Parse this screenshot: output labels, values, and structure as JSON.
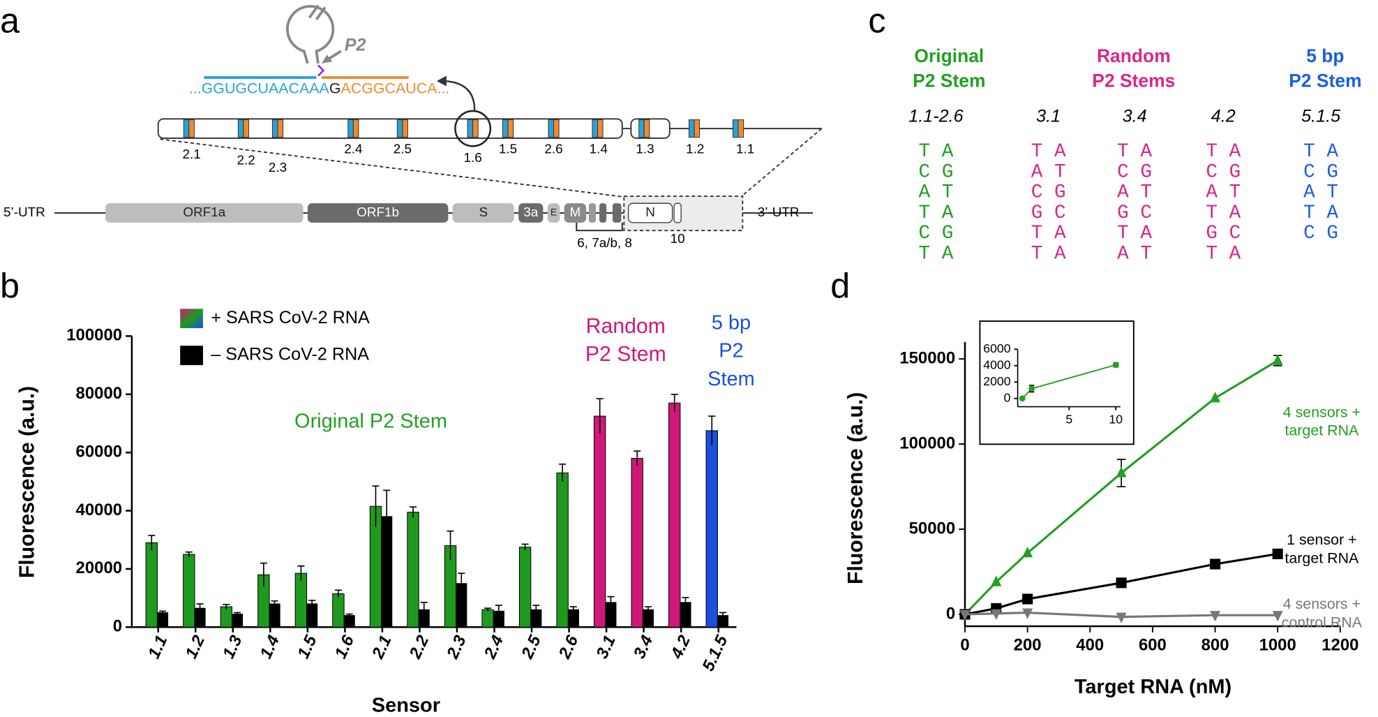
{
  "panel_a": {
    "label": "a",
    "p2_label": "P2",
    "sequence": {
      "left": "...GGUGCUAACAAA",
      "junction": "G",
      "right": "ACGGCAUCA..."
    },
    "sensor_sites": [
      "2.1",
      "2.2",
      "2.3",
      "2.4",
      "2.5",
      "1.6",
      "1.5",
      "2.6",
      "1.4",
      "1.3",
      "1.2",
      "1.1"
    ],
    "genome": {
      "utr5": "5’-UTR",
      "utr3": "3’-UTR",
      "genes": [
        "ORF1a",
        "ORF1b",
        "S",
        "3a",
        "E",
        "M",
        "N"
      ],
      "accessory": "6, 7a/b, 8",
      "orf10": "10"
    }
  },
  "panel_c": {
    "label": "c",
    "groups": [
      {
        "title_lines": [
          "Original",
          "P2 Stem"
        ],
        "color": "#22a022",
        "columns": [
          {
            "name": "1.1-2.6",
            "pairs": [
              "T A",
              "C G",
              "A T",
              "T A",
              "C G",
              "T A"
            ]
          }
        ]
      },
      {
        "title_lines": [
          "Random",
          "P2 Stems"
        ],
        "color": "#d6288a",
        "columns": [
          {
            "name": "3.1",
            "pairs": [
              "T A",
              "A T",
              "C G",
              "G C",
              "T A",
              "T A"
            ]
          },
          {
            "name": "3.4",
            "pairs": [
              "T A",
              "C G",
              "A T",
              "G C",
              "T A",
              "A T"
            ]
          },
          {
            "name": "4.2",
            "pairs": [
              "T A",
              "C G",
              "A T",
              "T A",
              "G C",
              "T A"
            ]
          }
        ]
      },
      {
        "title_lines": [
          "5 bp",
          "P2 Stem"
        ],
        "color": "#1a5fe0",
        "columns": [
          {
            "name": "5.1.5",
            "pairs": [
              "T A",
              "C G",
              "A T",
              "T A",
              "C G"
            ]
          }
        ]
      }
    ]
  },
  "chart_data": [
    {
      "type": "bar",
      "panel_label": "b",
      "y_label": "Fluorescence (a.u.)",
      "x_label": "Sensor",
      "categories": [
        "1.1",
        "1.2",
        "1.3",
        "1.4",
        "1.5",
        "1.6",
        "2.1",
        "2.2",
        "2.3",
        "2.4",
        "2.5",
        "2.6",
        "3.1",
        "3.4",
        "4.2",
        "5.1.5"
      ],
      "series": [
        {
          "name": "+ SARS CoV-2 RNA",
          "colors": [
            "#1f9a1f",
            "#1f9a1f",
            "#1f9a1f",
            "#1f9a1f",
            "#1f9a1f",
            "#1f9a1f",
            "#1f9a1f",
            "#1f9a1f",
            "#1f9a1f",
            "#1f9a1f",
            "#1f9a1f",
            "#1f9a1f",
            "#d0187a",
            "#d0187a",
            "#d0187a",
            "#1a4fe0"
          ],
          "values": [
            29000,
            25000,
            7000,
            18000,
            18500,
            11500,
            41500,
            39500,
            28000,
            6000,
            27500,
            53000,
            72500,
            58000,
            77000,
            67500
          ],
          "errors": [
            2500,
            800,
            800,
            4000,
            2500,
            1200,
            7000,
            1800,
            5000,
            500,
            1000,
            3000,
            6000,
            2500,
            3000,
            5000
          ]
        },
        {
          "name": "– SARS CoV-2 RNA",
          "color": "#000000",
          "values": [
            5000,
            6500,
            4500,
            8000,
            8000,
            4000,
            38000,
            6000,
            15000,
            5500,
            6000,
            6000,
            8500,
            6000,
            8500,
            4000
          ],
          "errors": [
            500,
            1500,
            500,
            1000,
            1200,
            500,
            9000,
            2500,
            3500,
            2000,
            1500,
            1000,
            2000,
            1000,
            1700,
            1000
          ]
        }
      ],
      "ylim": [
        0,
        100000
      ],
      "yticks": [
        0,
        20000,
        40000,
        60000,
        80000,
        100000
      ],
      "annotations": [
        {
          "lines": [
            "Original P2 Stem"
          ],
          "color": "#22a022"
        },
        {
          "lines": [
            "Random",
            "P2 Stem"
          ],
          "color": "#d0187a"
        },
        {
          "lines": [
            "5 bp",
            "P2",
            "Stem"
          ],
          "color": "#1a4fe0"
        }
      ]
    },
    {
      "type": "line",
      "panel_label": "d",
      "x_label": "Target RNA (nM)",
      "y_label": "Fluorescence (a.u.)",
      "x": [
        0,
        100,
        200,
        500,
        800,
        1000
      ],
      "series": [
        {
          "name": "4 sensors + target RNA",
          "color": "#22a022",
          "marker": "triangle-up",
          "values": [
            0,
            19000,
            36000,
            83000,
            127000,
            149000
          ],
          "errors": [
            null,
            null,
            null,
            8000,
            null,
            3000
          ]
        },
        {
          "name": "1 sensor + target RNA",
          "color": "#000000",
          "marker": "square",
          "values": [
            0,
            3500,
            9000,
            18500,
            29500,
            35500
          ]
        },
        {
          "name": "4 sensors + control RNA",
          "color": "#777777",
          "marker": "triangle-down",
          "values": [
            0,
            500,
            1000,
            -1500,
            -500,
            -500
          ]
        }
      ],
      "xlim": [
        0,
        1200
      ],
      "xticks": [
        0,
        200,
        400,
        600,
        800,
        1000,
        1200
      ],
      "ylim": [
        -7000,
        160000
      ],
      "yticks": [
        0,
        50000,
        100000,
        150000
      ]
    },
    {
      "type": "line",
      "inset": true,
      "x": [
        0,
        1,
        10
      ],
      "series": [
        {
          "color": "#22a022",
          "marker": "circle",
          "values": [
            0,
            1200,
            4100
          ],
          "errors": [
            null,
            400,
            250
          ]
        }
      ],
      "xlim": [
        -0.5,
        10.5
      ],
      "xticks": [
        5,
        10
      ],
      "ylim": [
        -1000,
        6000
      ],
      "yticks": [
        0,
        2000,
        4000,
        6000
      ]
    }
  ]
}
